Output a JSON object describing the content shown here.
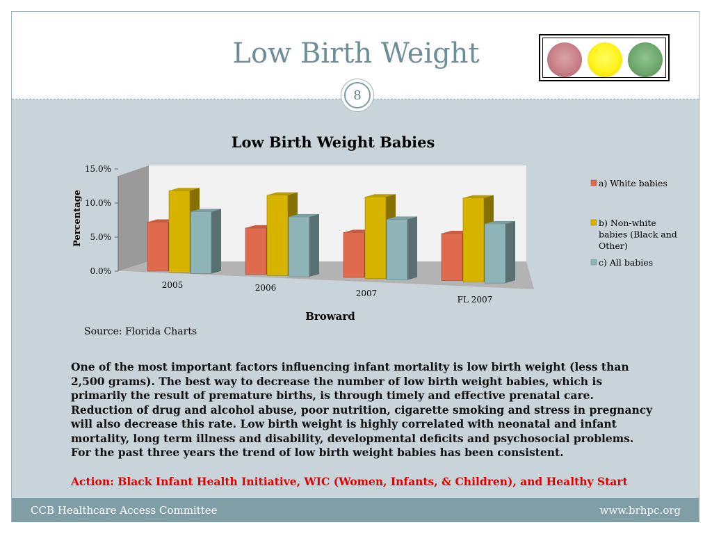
{
  "slide": {
    "title": "Low Birth Weight",
    "number": "8",
    "description": "One of the most important factors influencing infant mortality is low birth weight (less than 2,500 grams).  The best way to decrease the number of low birth weight babies, which is primarily the result of premature births, is through timely and effective prenatal care.  Reduction of drug and alcohol abuse, poor nutrition, cigarette smoking and stress in pregnancy will also decrease this rate.  Low birth weight is highly correlated with neonatal and infant mortality, long term illness and disability, developmental deficits and psychosocial problems.  For the past three years the trend of low birth weight babies has been consistent.",
    "action": "Action: Black Infant Health Initiative, WIC (Women, Infants, & Children), and Healthy Start",
    "source": "Source: Florida Charts"
  },
  "traffic_light": {
    "lights": [
      "red",
      "yellow",
      "green"
    ],
    "colors": {
      "red": "#c88088",
      "yellow": "#fff21a",
      "green": "#6ea86e"
    }
  },
  "footer": {
    "left": "CCB Healthcare Access Committee",
    "right": "www.brhpc.org"
  },
  "colors": {
    "title": "#6d8e96",
    "body_bg": "#c8d4d9",
    "footer_bg": "#7f9ea5",
    "action_text": "#e00000"
  },
  "chart_data": {
    "type": "bar",
    "title": "Low  Birth Weight Babies",
    "xlabel": "Broward",
    "ylabel": "Percentage",
    "categories": [
      "2005",
      "2006",
      "2007",
      "FL 2007"
    ],
    "ylim": [
      0,
      15
    ],
    "yticks": [
      "0.0%",
      "5.0%",
      "10.0%",
      "15.0%"
    ],
    "series": [
      {
        "name": "a)  White babies",
        "values": [
          7.2,
          6.8,
          6.6,
          6.9
        ],
        "color": "#e06a4e"
      },
      {
        "name": "b)  Non-white babies (Black and Other)",
        "values": [
          12.0,
          11.8,
          12.0,
          12.3
        ],
        "color": "#d6b400"
      },
      {
        "name": "c)  All babies",
        "values": [
          9.1,
          8.8,
          8.9,
          8.7
        ],
        "color": "#8fb4b8"
      }
    ],
    "legend_position": "right",
    "grid": false,
    "style": "3d"
  }
}
